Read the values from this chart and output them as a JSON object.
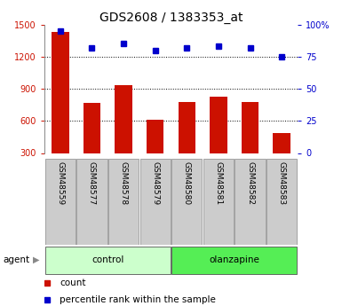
{
  "title": "GDS2608 / 1383353_at",
  "samples": [
    "GSM48559",
    "GSM48577",
    "GSM48578",
    "GSM48579",
    "GSM48580",
    "GSM48581",
    "GSM48582",
    "GSM48583"
  ],
  "counts": [
    1430,
    770,
    930,
    610,
    780,
    830,
    780,
    490
  ],
  "percentile_ranks": [
    95,
    82,
    85,
    80,
    82,
    83,
    82,
    75
  ],
  "bar_color": "#cc1100",
  "dot_color": "#0000cc",
  "left_ylim": [
    300,
    1500
  ],
  "left_yticks": [
    300,
    600,
    900,
    1200,
    1500
  ],
  "right_ylim": [
    0,
    100
  ],
  "right_yticks": [
    0,
    25,
    50,
    75,
    100
  ],
  "right_yticklabels": [
    "0",
    "25",
    "50",
    "75",
    "100%"
  ],
  "groups": [
    {
      "label": "control",
      "indices": [
        0,
        1,
        2,
        3
      ],
      "color": "#ccffcc"
    },
    {
      "label": "olanzapine",
      "indices": [
        4,
        5,
        6,
        7
      ],
      "color": "#55ee55"
    }
  ],
  "agent_label": "agent",
  "legend_count_label": "count",
  "legend_pct_label": "percentile rank within the sample",
  "bg_color": "#ffffff",
  "tick_bg_color": "#cccccc",
  "grid_dotted_ticks": [
    600,
    900,
    1200
  ],
  "title_fontsize": 10,
  "tick_fontsize": 7,
  "label_fontsize": 7.5
}
